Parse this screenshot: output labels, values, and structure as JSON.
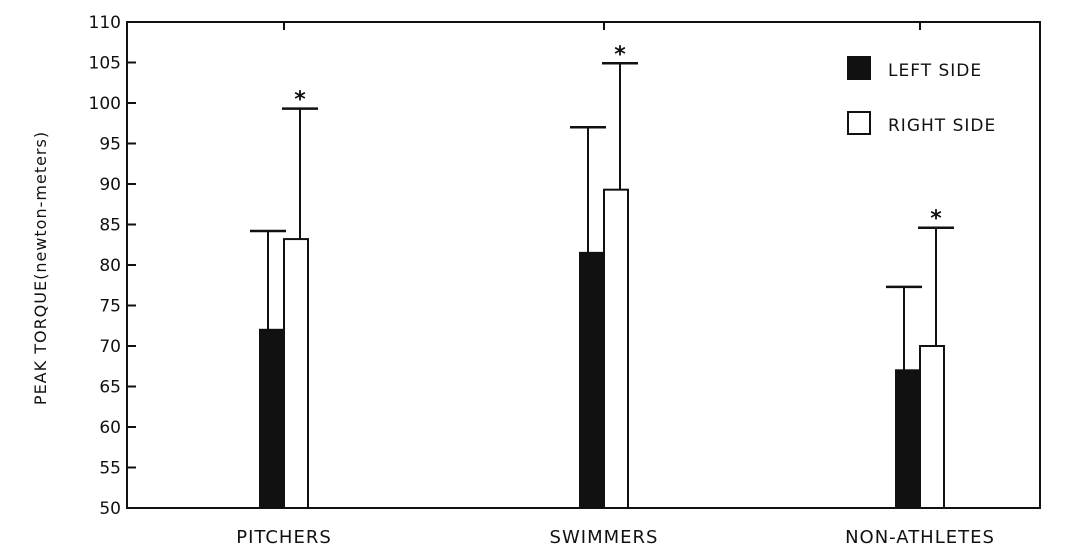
{
  "chart_data": {
    "type": "bar",
    "title": "",
    "xlabel": "",
    "ylabel": "PEAK TORQUE(newton-meters)",
    "ylim": [
      50,
      110
    ],
    "yticks": [
      50,
      55,
      60,
      65,
      70,
      75,
      80,
      85,
      90,
      95,
      100,
      105,
      110
    ],
    "categories": [
      "PITCHERS",
      "SWIMMERS",
      "NON-ATHLETES"
    ],
    "series": [
      {
        "name": "LEFT SIDE",
        "fill": "#111111",
        "values": [
          72,
          81.5,
          67
        ],
        "error_upper": [
          84.2,
          97,
          77.3
        ]
      },
      {
        "name": "RIGHT SIDE",
        "fill": "#ffffff",
        "values": [
          83.2,
          89.3,
          70
        ],
        "error_upper": [
          99.3,
          104.9,
          84.6
        ]
      }
    ],
    "annotations": [
      {
        "text": "*",
        "category": "PITCHERS",
        "series": "RIGHT SIDE"
      },
      {
        "text": "*",
        "category": "SWIMMERS",
        "series": "RIGHT SIDE"
      },
      {
        "text": "*",
        "category": "NON-ATHLETES",
        "series": "RIGHT SIDE"
      }
    ],
    "legend_position": "top-right",
    "grid": false
  }
}
